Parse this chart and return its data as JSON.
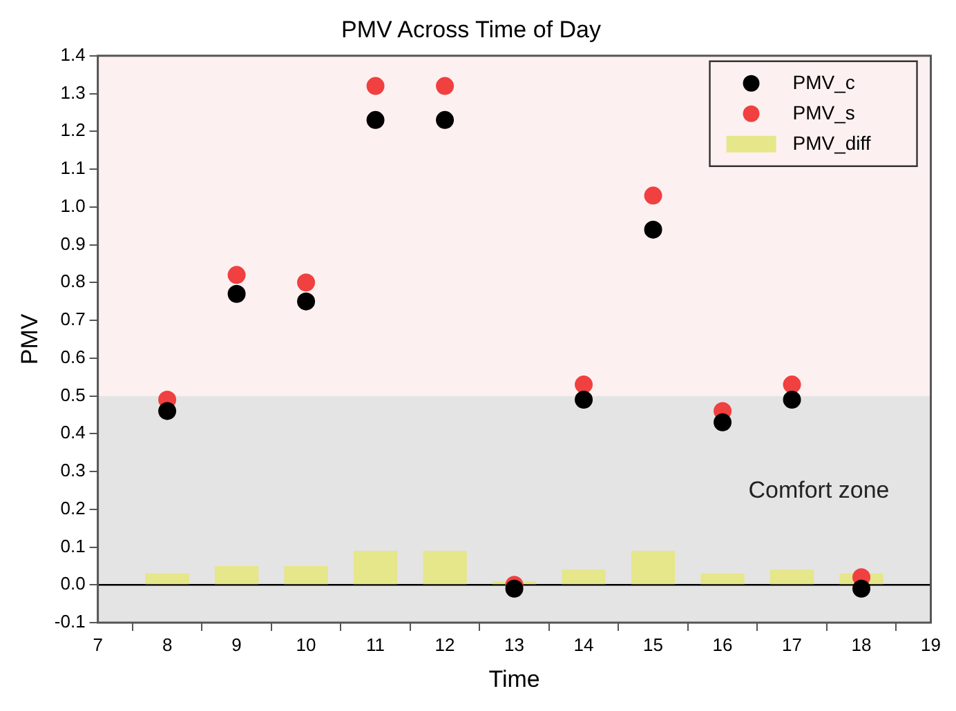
{
  "chart_data": {
    "type": "scatter",
    "title": "PMV Across Time of Day",
    "xlabel": "Time",
    "ylabel": "PMV",
    "x": [
      8,
      9,
      10,
      11,
      12,
      13,
      14,
      15,
      16,
      17,
      18
    ],
    "series": [
      {
        "name": "PMV_c",
        "color": "#000000",
        "values": [
          0.46,
          0.77,
          0.75,
          1.23,
          1.23,
          -0.01,
          0.49,
          0.94,
          0.43,
          0.49,
          -0.01
        ]
      },
      {
        "name": "PMV_s",
        "color": "#f04040",
        "values": [
          0.49,
          0.82,
          0.8,
          1.32,
          1.32,
          0.0,
          0.53,
          1.03,
          0.46,
          0.53,
          0.02
        ]
      },
      {
        "name": "PMV_diff",
        "type": "bar",
        "color": "#e6e68a",
        "values": [
          0.03,
          0.05,
          0.05,
          0.09,
          0.09,
          0.01,
          0.04,
          0.09,
          0.03,
          0.04,
          0.03
        ]
      }
    ],
    "xlim": [
      7,
      19
    ],
    "xticks": [
      7,
      8,
      9,
      10,
      11,
      12,
      13,
      14,
      15,
      16,
      17,
      18,
      19
    ],
    "ylim": [
      -0.1,
      1.4
    ],
    "yticks": [
      -0.1,
      {
        "value": 0,
        "label": "0.0"
      },
      0.1,
      0.2,
      0.3,
      0.4,
      0.5,
      0.6,
      0.7,
      0.8,
      0.9,
      {
        "value": 1,
        "label": "1.0"
      },
      1.1,
      1.2,
      1.3,
      1.4
    ],
    "bands": [
      {
        "axis": "y",
        "from": -0.1,
        "to": 0.5,
        "label": "Comfort zone",
        "color": "#e4e4e4"
      },
      {
        "axis": "y",
        "from": 0.5,
        "to": 1.4,
        "color": "#fdf0f0"
      }
    ],
    "ref_lines": [
      {
        "axis": "y",
        "value": 0,
        "color": "#000000"
      }
    ],
    "legend": "top right",
    "marker": "circle",
    "grid": false
  }
}
